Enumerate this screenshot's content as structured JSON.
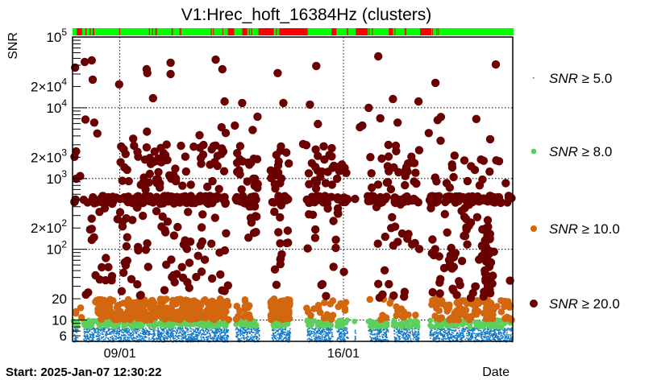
{
  "chart_data": {
    "type": "scatter",
    "title": "V1:Hrec_hoft_16384Hz (clusters)",
    "ylabel": "SNR",
    "xlabel": "Date",
    "start_label": "Start: 2025-Jan-07 12:30:22",
    "x_units": "days since start",
    "xlim": [
      0,
      13.78
    ],
    "ylim": [
      5,
      100000
    ],
    "yscale": "log",
    "grid": true,
    "legend_position": "right",
    "xticks": [
      {
        "x": 1.479,
        "label": "09/01"
      },
      {
        "x": 8.479,
        "label": "16/01"
      }
    ],
    "yticks": [
      {
        "v": 6,
        "mant": "6",
        "exp": ""
      },
      {
        "v": 10,
        "mant": "10",
        "exp": ""
      },
      {
        "v": 20,
        "mant": "20",
        "exp": ""
      },
      {
        "v": 100,
        "mant": "10",
        "exp": "2"
      },
      {
        "v": 200,
        "mant": "2×10",
        "exp": "2"
      },
      {
        "v": 1000,
        "mant": "10",
        "exp": "3"
      },
      {
        "v": 2000,
        "mant": "2×10",
        "exp": "3"
      },
      {
        "v": 10000,
        "mant": "10",
        "exp": "4"
      },
      {
        "v": 20000,
        "mant": "2×10",
        "exp": "4"
      },
      {
        "v": 100000,
        "mant": "10",
        "exp": "5"
      }
    ],
    "state_bar": {
      "ok_color": "#00ff00",
      "bad_color": "#ff0000",
      "bad_intervals": [
        [
          0.13,
          0.3
        ],
        [
          0.4,
          0.44
        ],
        [
          0.53,
          0.57
        ],
        [
          0.63,
          0.68
        ],
        [
          1.46,
          1.49
        ],
        [
          2.39,
          2.42
        ],
        [
          2.49,
          2.52
        ],
        [
          2.59,
          2.64
        ],
        [
          3.1,
          3.14
        ],
        [
          3.35,
          3.4
        ],
        [
          4.33,
          4.36
        ],
        [
          4.4,
          4.42
        ],
        [
          4.69,
          4.71
        ],
        [
          4.86,
          5.06
        ],
        [
          5.31,
          5.47
        ],
        [
          5.52,
          5.54
        ],
        [
          5.59,
          5.62
        ],
        [
          5.82,
          6.3
        ],
        [
          6.37,
          6.4
        ],
        [
          6.47,
          7.36
        ],
        [
          8.11,
          8.26
        ],
        [
          8.59,
          8.63
        ],
        [
          8.87,
          9.24
        ],
        [
          9.27,
          9.29
        ],
        [
          9.37,
          9.4
        ],
        [
          9.9,
          10.03
        ],
        [
          10.08,
          10.1
        ],
        [
          10.4,
          10.45
        ],
        [
          10.88,
          11.23
        ],
        [
          11.26,
          11.28
        ],
        [
          11.39,
          11.41
        ],
        [
          11.44,
          11.46
        ]
      ]
    },
    "coverage": [
      [
        0,
        0.15
      ],
      [
        0.33,
        4.86
      ],
      [
        5.09,
        5.84
      ],
      [
        6.22,
        6.8
      ],
      [
        7.33,
        8.14
      ],
      [
        8.26,
        8.61
      ],
      [
        8.82,
        8.85
      ],
      [
        9.24,
        9.87
      ],
      [
        10.05,
        10.83
      ],
      [
        11.16,
        13.75
      ]
    ],
    "series": [
      {
        "name": "SNR ≥ 5.0",
        "var": "SNR",
        "thr": "≥ 5.0",
        "color": "#1478c8",
        "marker": "pixel",
        "density": [
          {
            "range": [
              5,
              8
            ],
            "per_day": 260
          }
        ]
      },
      {
        "name": "SNR ≥ 8.0",
        "var": "SNR",
        "thr": "≥ 8.0",
        "color": "#5ccf5c",
        "marker": "small-circle",
        "density": [
          {
            "range": [
              8,
              10
            ],
            "per_day": 40
          }
        ]
      },
      {
        "name": "SNR ≥ 10.0",
        "var": "SNR",
        "thr": "≥ 10.0",
        "color": "#d2670f",
        "marker": "circle",
        "clusters": [
          {
            "x": [
              0.0,
              0.3
            ],
            "y": [
              10,
              20
            ],
            "n": 4
          },
          {
            "x": [
              0.7,
              4.9
            ],
            "y": [
              10,
              20
            ],
            "n": 300
          },
          {
            "x": [
              5.1,
              5.8
            ],
            "y": [
              10,
              20
            ],
            "n": 15
          },
          {
            "x": [
              6.2,
              6.8
            ],
            "y": [
              10,
              20
            ],
            "n": 70
          },
          {
            "x": [
              7.3,
              8.6
            ],
            "y": [
              10,
              20
            ],
            "n": 20
          },
          {
            "x": [
              9.3,
              10.9
            ],
            "y": [
              10,
              20
            ],
            "n": 18
          },
          {
            "x": [
              11.2,
              13.75
            ],
            "y": [
              10,
              20
            ],
            "n": 110
          }
        ]
      },
      {
        "name": "SNR ≥ 20.0",
        "var": "SNR",
        "thr": "≥ 20.0",
        "color": "#6b0000",
        "marker": "big-circle",
        "bands": [
          {
            "y": [
              440,
              570
            ],
            "per_day": 28
          }
        ],
        "clusters": [
          {
            "x": [
              0.05,
              0.3
            ],
            "y": [
              700,
              3000
            ],
            "n": 4
          },
          {
            "x": [
              1.5,
              4.9
            ],
            "y": [
              700,
              3000
            ],
            "n": 70
          },
          {
            "x": [
              5.1,
              5.8
            ],
            "y": [
              700,
              3000
            ],
            "n": 20
          },
          {
            "x": [
              6.2,
              6.8
            ],
            "y": [
              700,
              3000
            ],
            "n": 18
          },
          {
            "x": [
              7.3,
              8.6
            ],
            "y": [
              700,
              3000
            ],
            "n": 30
          },
          {
            "x": [
              9.3,
              10.9
            ],
            "y": [
              700,
              3000
            ],
            "n": 30
          },
          {
            "x": [
              11.2,
              13.75
            ],
            "y": [
              700,
              2500
            ],
            "n": 20
          },
          {
            "x": [
              0.3,
              4.9
            ],
            "y": [
              100,
              430
            ],
            "n": 40
          },
          {
            "x": [
              5.5,
              5.8
            ],
            "y": [
              100,
              430
            ],
            "n": 10
          },
          {
            "x": [
              6.3,
              6.8
            ],
            "y": [
              100,
              430
            ],
            "n": 8
          },
          {
            "x": [
              7.3,
              8.6
            ],
            "y": [
              100,
              430
            ],
            "n": 12
          },
          {
            "x": [
              9.2,
              10.9
            ],
            "y": [
              100,
              430
            ],
            "n": 15
          },
          {
            "x": [
              11.2,
              13.75
            ],
            "y": [
              100,
              430
            ],
            "n": 25
          },
          {
            "x": [
              0.4,
              4.9
            ],
            "y": [
              20,
              100
            ],
            "n": 45
          },
          {
            "x": [
              6.3,
              6.7
            ],
            "y": [
              20,
              100
            ],
            "n": 6
          },
          {
            "x": [
              7.7,
              8.7
            ],
            "y": [
              20,
              100
            ],
            "n": 5
          },
          {
            "x": [
              9.5,
              10.5
            ],
            "y": [
              20,
              100
            ],
            "n": 8
          },
          {
            "x": [
              11.2,
              13.75
            ],
            "y": [
              20,
              100
            ],
            "n": 40
          },
          {
            "x": [
              12.9,
              13.1
            ],
            "y": [
              20,
              200
            ],
            "n": 30
          },
          {
            "x": [
              0.1,
              13.5
            ],
            "y": [
              3000,
              8000
            ],
            "n": 22
          }
        ],
        "points": [
          [
            0.08,
            37000
          ],
          [
            0.38,
            44500
          ],
          [
            0.6,
            46800
          ],
          [
            0.63,
            25000
          ],
          [
            1.46,
            21400
          ],
          [
            2.32,
            35100
          ],
          [
            2.34,
            30900
          ],
          [
            2.52,
            13700
          ],
          [
            3.07,
            43300
          ],
          [
            3.07,
            30000
          ],
          [
            4.48,
            47900
          ],
          [
            4.69,
            35100
          ],
          [
            4.76,
            12300
          ],
          [
            5.31,
            11700
          ],
          [
            5.79,
            7500
          ],
          [
            6.42,
            30900
          ],
          [
            6.6,
            11700
          ],
          [
            7.43,
            11100
          ],
          [
            7.63,
            39000
          ],
          [
            7.68,
            5900
          ],
          [
            9.27,
            10000
          ],
          [
            9.57,
            53300
          ],
          [
            10.03,
            13300
          ],
          [
            10.83,
            12300
          ],
          [
            11.36,
            22500
          ],
          [
            13.25,
            40900
          ]
        ]
      }
    ]
  }
}
